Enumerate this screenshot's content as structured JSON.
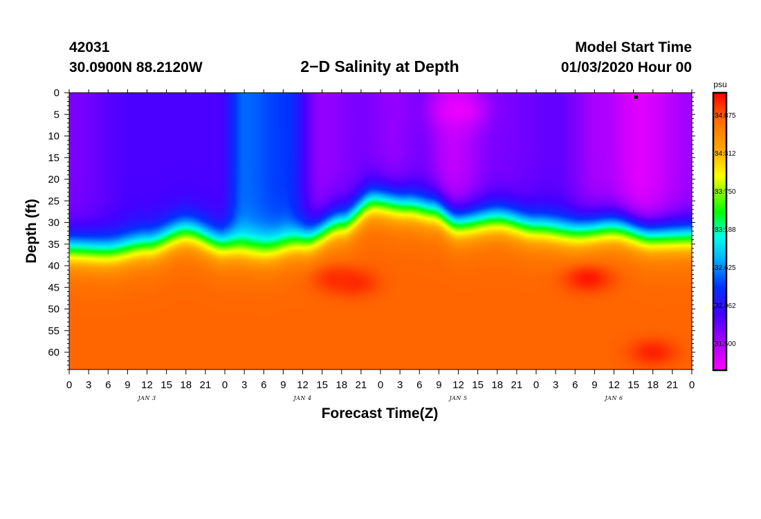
{
  "header": {
    "station_id": "42031",
    "station_coords": "30.0900N 88.2120W",
    "title": "2−D Salinity at Depth",
    "model_start_label": "Model Start Time",
    "model_start_value": "01/03/2020 Hour 00"
  },
  "chart_data": {
    "type": "heatmap",
    "title": "2−D Salinity at Depth",
    "xlabel": "Forecast Time(Z)",
    "ylabel": "Depth (ft)",
    "x_range_hours": [
      0,
      96
    ],
    "x_tick_labels": [
      "0",
      "3",
      "6",
      "9",
      "12",
      "15",
      "18",
      "21",
      "0",
      "3",
      "6",
      "9",
      "12",
      "15",
      "18",
      "21",
      "0",
      "3",
      "6",
      "9",
      "12",
      "15",
      "18",
      "21",
      "0",
      "3",
      "6",
      "9",
      "12",
      "15",
      "18",
      "21",
      "0"
    ],
    "day_labels": [
      {
        "hour": 12,
        "label": "JAN 3"
      },
      {
        "hour": 36,
        "label": "JAN 4"
      },
      {
        "hour": 60,
        "label": "JAN 5"
      },
      {
        "hour": 84,
        "label": "JAN 6"
      }
    ],
    "y_range_ft": [
      0,
      64
    ],
    "y_ticks": [
      0,
      5,
      10,
      15,
      20,
      25,
      30,
      35,
      40,
      45,
      50,
      55,
      60
    ],
    "colorbar": {
      "unit": "psu",
      "range": [
        31.1,
        35.2
      ],
      "tick_values": [
        31.5,
        32.062,
        32.625,
        33.188,
        33.75,
        34.312,
        34.875
      ],
      "tick_labels": [
        "31.500",
        "32.062",
        "32.625",
        "33.188",
        "33.750",
        "34.312",
        "34.875"
      ]
    },
    "halocline_depth_ft": [
      {
        "hour": 0,
        "depth": 36
      },
      {
        "hour": 6,
        "depth": 36.5
      },
      {
        "hour": 12,
        "depth": 35
      },
      {
        "hour": 18,
        "depth": 32
      },
      {
        "hour": 24,
        "depth": 35
      },
      {
        "hour": 30,
        "depth": 36
      },
      {
        "hour": 36,
        "depth": 34
      },
      {
        "hour": 42,
        "depth": 30
      },
      {
        "hour": 47,
        "depth": 25
      },
      {
        "hour": 52,
        "depth": 26
      },
      {
        "hour": 56,
        "depth": 27
      },
      {
        "hour": 60,
        "depth": 30
      },
      {
        "hour": 66,
        "depth": 29
      },
      {
        "hour": 72,
        "depth": 31
      },
      {
        "hour": 78,
        "depth": 32
      },
      {
        "hour": 84,
        "depth": 31
      },
      {
        "hour": 90,
        "depth": 33
      },
      {
        "hour": 96,
        "depth": 33
      }
    ],
    "upper_layer_salinity_psu": [
      {
        "hour": 0,
        "value": 31.7
      },
      {
        "hour": 10,
        "value": 31.9
      },
      {
        "hour": 20,
        "value": 31.9
      },
      {
        "hour": 23,
        "value": 31.9
      },
      {
        "hour": 27,
        "value": 32.5
      },
      {
        "hour": 33,
        "value": 32.35
      },
      {
        "hour": 39,
        "value": 31.6
      },
      {
        "hour": 45,
        "value": 31.7
      },
      {
        "hour": 50,
        "value": 31.6
      },
      {
        "hour": 54,
        "value": 31.7
      },
      {
        "hour": 59,
        "value": 31.4
      },
      {
        "hour": 66,
        "value": 31.7
      },
      {
        "hour": 75,
        "value": 31.8
      },
      {
        "hour": 82,
        "value": 31.5
      },
      {
        "hour": 88,
        "value": 31.25
      },
      {
        "hour": 96,
        "value": 31.55
      }
    ],
    "deep_layer_salinity_psu": 34.82,
    "notable_features": [
      {
        "kind": "high-salinity-core",
        "hour": 41,
        "depth_ft": 43,
        "value_psu": 35.02
      },
      {
        "kind": "high-salinity-core",
        "hour": 44,
        "depth_ft": 44,
        "value_psu": 35.05
      },
      {
        "kind": "high-salinity-core",
        "hour": 80,
        "depth_ft": 43,
        "value_psu": 35.12
      },
      {
        "kind": "high-salinity-bottom",
        "hour": 90,
        "depth_ft": 60,
        "value_psu": 35.08
      },
      {
        "kind": "low-salinity-surface",
        "hour": 60,
        "depth_ft": 4,
        "value_psu": 31.2
      }
    ]
  }
}
